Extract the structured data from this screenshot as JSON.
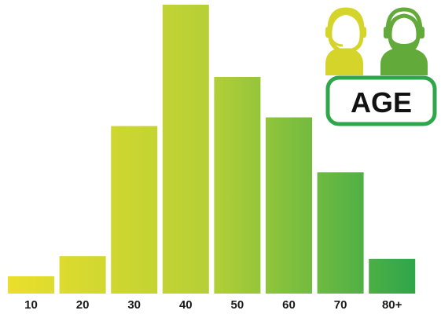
{
  "chart_data": {
    "type": "bar",
    "categories": [
      "10",
      "20",
      "30",
      "40",
      "50",
      "60",
      "70",
      "80+"
    ],
    "values": [
      6,
      13,
      58,
      100,
      75,
      61,
      42,
      12
    ],
    "ylim": [
      0,
      100
    ],
    "grid": false,
    "legend": "none"
  },
  "badge": {
    "label": "AGE",
    "icons": [
      "woman-headset-icon",
      "man-headset-icon"
    ]
  },
  "colors": {
    "gradient_start": "#eadf2b",
    "gradient_end": "#2ea64a",
    "woman_icon": "#d4d42a",
    "man_icon": "#62aa3a",
    "badge_border": "#2ea64a"
  }
}
